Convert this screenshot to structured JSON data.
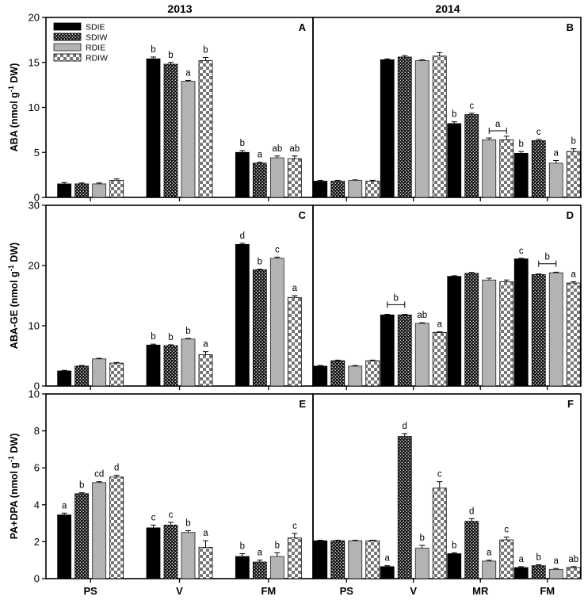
{
  "columns": [
    "2013",
    "2014"
  ],
  "legend": [
    "SDIE",
    "SDIW",
    "RDIE",
    "RDIW"
  ],
  "chart_data": [
    {
      "panel": "A",
      "type": "bar",
      "year": "2013",
      "row": 0,
      "col": 0,
      "ylabel": "ABA (nmol g-1 DW)",
      "ylim": [
        0,
        20
      ],
      "yticks": [
        0,
        5,
        10,
        15,
        20
      ],
      "categories": [
        "PS",
        "V",
        "FM"
      ],
      "show_categories": false,
      "series": [
        {
          "name": "SDIE",
          "values": [
            1.5,
            15.4,
            5.0
          ],
          "errors": [
            0.15,
            0.2,
            0.2
          ],
          "labels": [
            "",
            "b",
            "b"
          ]
        },
        {
          "name": "SDIW",
          "values": [
            1.5,
            14.8,
            3.8
          ],
          "errors": [
            0.1,
            0.2,
            0.1
          ],
          "labels": [
            "",
            "b",
            "a"
          ]
        },
        {
          "name": "RDIE",
          "values": [
            1.5,
            12.9,
            4.4
          ],
          "errors": [
            0.1,
            0.1,
            0.2
          ],
          "labels": [
            "",
            "a",
            "ab"
          ]
        },
        {
          "name": "RDIW",
          "values": [
            1.9,
            15.2,
            4.3
          ],
          "errors": [
            0.15,
            0.35,
            0.3
          ],
          "labels": [
            "",
            "b",
            "ab"
          ]
        }
      ],
      "brackets": []
    },
    {
      "panel": "B",
      "type": "bar",
      "year": "2014",
      "row": 0,
      "col": 1,
      "ylabel": "",
      "ylim": [
        0,
        20
      ],
      "yticks": [
        0,
        5,
        10,
        15,
        20
      ],
      "categories": [
        "PS",
        "V",
        "MR",
        "FM"
      ],
      "show_categories": false,
      "series": [
        {
          "name": "SDIE",
          "values": [
            1.8,
            15.3,
            8.2,
            4.9
          ],
          "errors": [
            0.1,
            0.1,
            0.2,
            0.2
          ],
          "labels": [
            "",
            "",
            "b",
            "b"
          ]
        },
        {
          "name": "SDIW",
          "values": [
            1.8,
            15.6,
            9.2,
            6.3
          ],
          "errors": [
            0.1,
            0.15,
            0.15,
            0.15
          ],
          "labels": [
            "",
            "",
            "c",
            "c"
          ]
        },
        {
          "name": "RDIE",
          "values": [
            1.9,
            15.2,
            6.4,
            3.8
          ],
          "errors": [
            0.05,
            0.1,
            0.2,
            0.3
          ],
          "labels": [
            "",
            "",
            "",
            "a"
          ]
        },
        {
          "name": "RDIW",
          "values": [
            1.8,
            15.7,
            6.4,
            5.1
          ],
          "errors": [
            0.1,
            0.4,
            0.4,
            0.3
          ],
          "labels": [
            "",
            "",
            "",
            "b"
          ]
        }
      ],
      "brackets": [
        {
          "category": 2,
          "from": 2,
          "to": 3,
          "value": 7.4,
          "label": "a"
        }
      ]
    },
    {
      "panel": "C",
      "type": "bar",
      "year": "2013",
      "row": 1,
      "col": 0,
      "ylabel": "ABA-GE (nmol g-1 DW)",
      "ylim": [
        0,
        30
      ],
      "yticks": [
        0,
        10,
        20,
        30
      ],
      "categories": [
        "PS",
        "V",
        "FM"
      ],
      "show_categories": false,
      "series": [
        {
          "name": "SDIE",
          "values": [
            2.5,
            6.8,
            23.5
          ],
          "errors": [
            0.1,
            0.15,
            0.2
          ],
          "labels": [
            "",
            "b",
            "d"
          ]
        },
        {
          "name": "SDIW",
          "values": [
            3.3,
            6.7,
            19.3
          ],
          "errors": [
            0.1,
            0.15,
            0.1
          ],
          "labels": [
            "",
            "b",
            "b"
          ]
        },
        {
          "name": "RDIE",
          "values": [
            4.5,
            7.8,
            21.2
          ],
          "errors": [
            0.1,
            0.1,
            0.2
          ],
          "labels": [
            "",
            "b",
            "c"
          ]
        },
        {
          "name": "RDIW",
          "values": [
            3.8,
            5.2,
            14.7
          ],
          "errors": [
            0.1,
            0.5,
            0.3
          ],
          "labels": [
            "",
            "a",
            "a"
          ]
        }
      ],
      "brackets": []
    },
    {
      "panel": "D",
      "type": "bar",
      "year": "2014",
      "row": 1,
      "col": 1,
      "ylabel": "",
      "ylim": [
        0,
        30
      ],
      "yticks": [
        0,
        10,
        20,
        30
      ],
      "categories": [
        "PS",
        "V",
        "MR",
        "FM"
      ],
      "show_categories": false,
      "series": [
        {
          "name": "SDIE",
          "values": [
            3.3,
            11.8,
            18.2,
            21.1
          ],
          "errors": [
            0.1,
            0.1,
            0.1,
            0.1
          ],
          "labels": [
            "",
            "",
            "",
            "c"
          ]
        },
        {
          "name": "SDIW",
          "values": [
            4.2,
            11.8,
            18.7,
            18.5
          ],
          "errors": [
            0.1,
            0.1,
            0.15,
            0.1
          ],
          "labels": [
            "",
            "",
            "",
            ""
          ]
        },
        {
          "name": "RDIE",
          "values": [
            3.3,
            10.4,
            17.6,
            18.8
          ],
          "errors": [
            0.1,
            0.1,
            0.3,
            0.1
          ],
          "labels": [
            "",
            "ab",
            "",
            ""
          ]
        },
        {
          "name": "RDIW",
          "values": [
            4.2,
            8.9,
            17.3,
            17.1
          ],
          "errors": [
            0.1,
            0.1,
            0.3,
            0.2
          ],
          "labels": [
            "",
            "a",
            "",
            "a"
          ]
        }
      ],
      "brackets": [
        {
          "category": 1,
          "from": 0,
          "to": 1,
          "value": 13.5,
          "label": "b"
        },
        {
          "category": 3,
          "from": 1,
          "to": 2,
          "value": 20.3,
          "label": "b"
        }
      ]
    },
    {
      "panel": "E",
      "type": "bar",
      "year": "2013",
      "row": 2,
      "col": 0,
      "ylabel": "PA+DPA (nmol g-1 DW)",
      "ylim": [
        0,
        10
      ],
      "yticks": [
        0,
        2,
        4,
        6,
        8,
        10
      ],
      "categories": [
        "PS",
        "V",
        "FM"
      ],
      "show_categories": true,
      "series": [
        {
          "name": "SDIE",
          "values": [
            3.45,
            2.75,
            1.2
          ],
          "errors": [
            0.1,
            0.15,
            0.15
          ],
          "labels": [
            "a",
            "c",
            "b"
          ]
        },
        {
          "name": "SDIW",
          "values": [
            4.6,
            2.9,
            0.9
          ],
          "errors": [
            0.05,
            0.15,
            0.1
          ],
          "labels": [
            "b",
            "c",
            "a"
          ]
        },
        {
          "name": "RDIE",
          "values": [
            5.2,
            2.5,
            1.2
          ],
          "errors": [
            0.05,
            0.1,
            0.2
          ],
          "labels": [
            "cd",
            "b",
            "b"
          ]
        },
        {
          "name": "RDIW",
          "values": [
            5.5,
            1.7,
            2.2
          ],
          "errors": [
            0.1,
            0.35,
            0.25
          ],
          "labels": [
            "d",
            "a",
            "c"
          ]
        }
      ],
      "brackets": []
    },
    {
      "panel": "F",
      "type": "bar",
      "year": "2014",
      "row": 2,
      "col": 1,
      "ylabel": "",
      "ylim": [
        0,
        10
      ],
      "yticks": [
        0,
        2,
        4,
        6,
        8,
        10
      ],
      "categories": [
        "PS",
        "V",
        "MR",
        "FM"
      ],
      "show_categories": true,
      "series": [
        {
          "name": "SDIE",
          "values": [
            2.05,
            0.65,
            1.35,
            0.6
          ],
          "errors": [
            0.03,
            0.05,
            0.05,
            0.05
          ],
          "labels": [
            "",
            "a",
            "b",
            "a"
          ]
        },
        {
          "name": "SDIW",
          "values": [
            2.05,
            7.7,
            3.1,
            0.7
          ],
          "errors": [
            0.03,
            0.15,
            0.15,
            0.05
          ],
          "labels": [
            "",
            "d",
            "d",
            "b"
          ]
        },
        {
          "name": "RDIE",
          "values": [
            2.05,
            1.65,
            0.95,
            0.5
          ],
          "errors": [
            0.03,
            0.15,
            0.05,
            0.05
          ],
          "labels": [
            "",
            "b",
            "a",
            "a"
          ]
        },
        {
          "name": "RDIW",
          "values": [
            2.05,
            4.9,
            2.1,
            0.6
          ],
          "errors": [
            0.03,
            0.35,
            0.15,
            0.05
          ],
          "labels": [
            "",
            "c",
            "c",
            "ab"
          ]
        }
      ],
      "brackets": []
    }
  ]
}
